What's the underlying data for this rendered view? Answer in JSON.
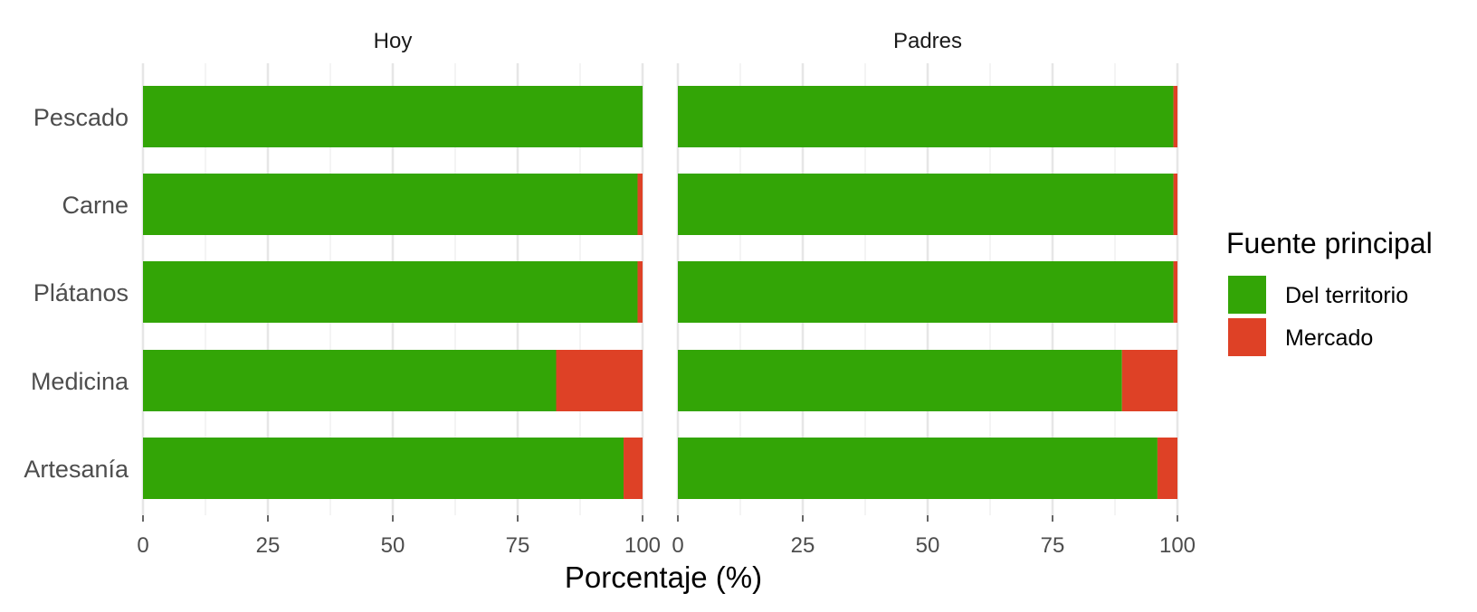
{
  "chart_data": {
    "type": "bar",
    "orientation": "horizontal",
    "stacked": true,
    "categories": [
      "Pescado",
      "Carne",
      "Plátanos",
      "Medicina",
      "Artesanía"
    ],
    "panels": [
      {
        "name": "Hoy",
        "series": [
          {
            "name": "Del territorio",
            "values": [
              100,
              99,
              99,
              82.7,
              96.2
            ]
          },
          {
            "name": "Mercado",
            "values": [
              0,
              1,
              1,
              17.3,
              3.8
            ]
          }
        ]
      },
      {
        "name": "Padres",
        "series": [
          {
            "name": "Del territorio",
            "values": [
              99.2,
              99.2,
              99.2,
              88.9,
              96
            ]
          },
          {
            "name": "Mercado",
            "values": [
              0.8,
              0.8,
              0.8,
              11.1,
              4
            ]
          }
        ]
      }
    ],
    "xlabel": "Porcentaje (%)",
    "ylabel": "",
    "xlim": [
      0,
      100
    ],
    "xticks": [
      "0",
      "25",
      "50",
      "75",
      "100"
    ],
    "grid": true,
    "legend": {
      "title": "Fuente principal",
      "position": "right",
      "entries": [
        "Del territorio",
        "Mercado"
      ]
    },
    "colors": {
      "Del territorio": "#33a506",
      "Mercado": "#de4126"
    }
  }
}
